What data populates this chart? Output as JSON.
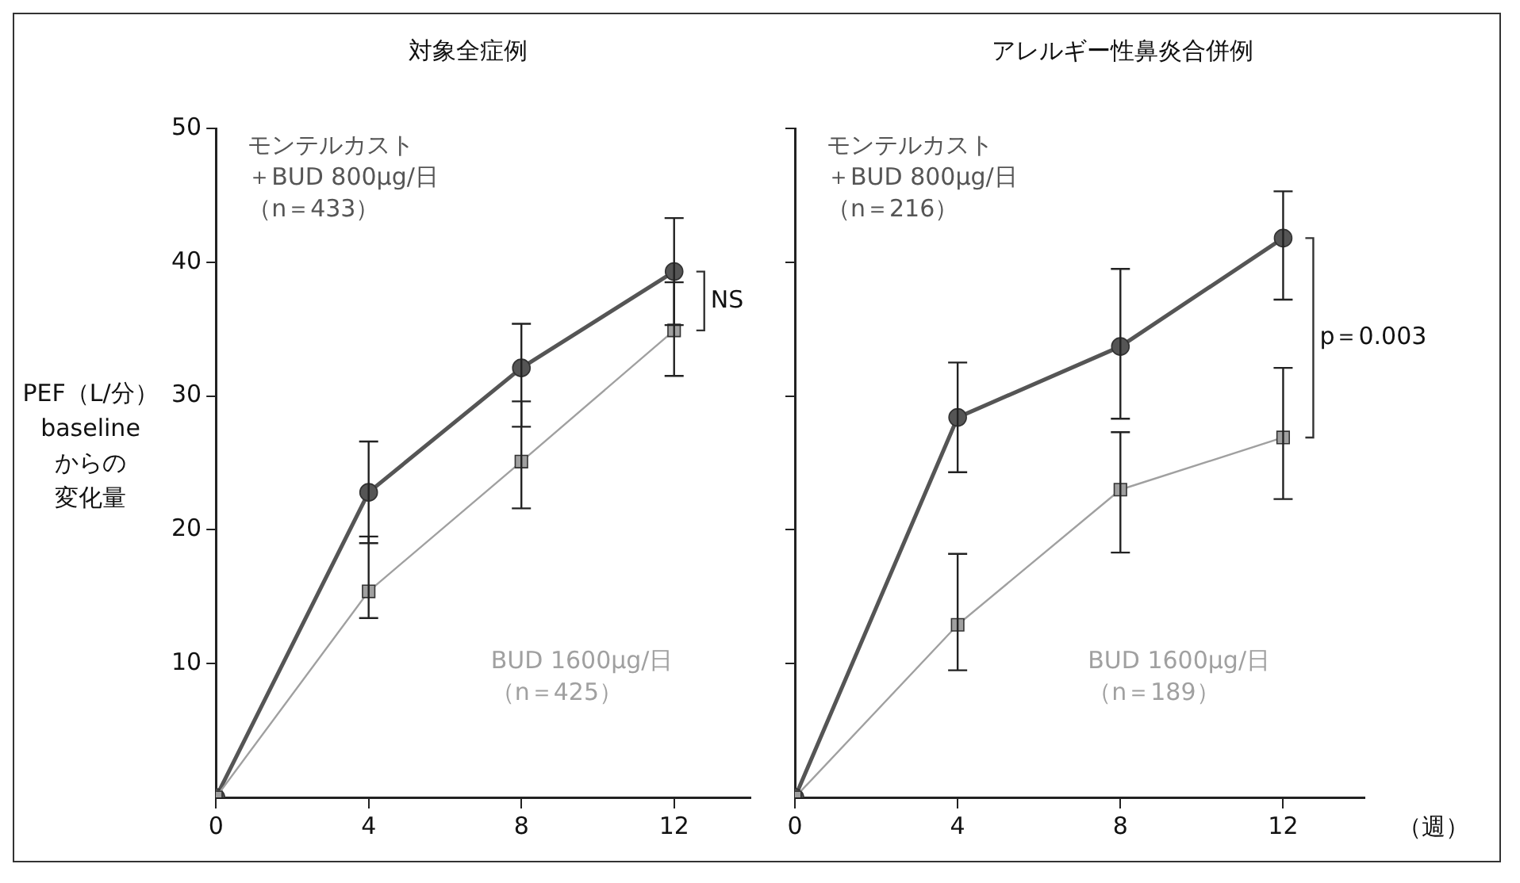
{
  "chart_data": [
    {
      "type": "line",
      "title": "対象全症例",
      "ylabel": "PEF（L/分）baselineからの変化量",
      "x": [
        0,
        4,
        8,
        12
      ],
      "xlim": [
        0,
        14
      ],
      "xticks": [
        0,
        4,
        8,
        12
      ],
      "ylim": [
        0,
        50
      ],
      "yticks": [
        10,
        20,
        30,
        40,
        50
      ],
      "grid": false,
      "legend": false,
      "annotations": [
        "NS"
      ],
      "series": [
        {
          "name": "モンテルカスト＋BUD 800μg/日（n＝433）",
          "color": "#555555",
          "marker": "circle",
          "values": [
            0,
            22.8,
            32.1,
            39.3
          ],
          "errors": [
            null,
            [
              19.0,
              26.6
            ],
            [
              27.7,
              35.4
            ],
            [
              35.3,
              43.3
            ]
          ]
        },
        {
          "name": "BUD 1600μg/日（n＝425）",
          "color": "#a0a0a0",
          "marker": "square",
          "values": [
            0,
            15.4,
            25.1,
            34.9
          ],
          "errors": [
            null,
            [
              13.4,
              19.5
            ],
            [
              21.6,
              29.6
            ],
            [
              31.5,
              38.5
            ]
          ]
        }
      ]
    },
    {
      "type": "line",
      "title": "アレルギー性鼻炎合併例",
      "xlabel": "（週）",
      "x": [
        0,
        4,
        8,
        12
      ],
      "xlim": [
        0,
        14
      ],
      "xticks": [
        0,
        4,
        8,
        12
      ],
      "ylim": [
        0,
        50
      ],
      "yticks": [
        {
          "value": 10,
          "label": null
        },
        {
          "value": 20,
          "label": null
        },
        {
          "value": 30,
          "label": null
        },
        {
          "value": 40,
          "label": null
        },
        {
          "value": 50,
          "label": null
        }
      ],
      "tick_labels": "x",
      "grid": false,
      "legend": false,
      "annotations": [
        "p＝0.003"
      ],
      "series": [
        {
          "name": "モンテルカスト＋BUD 800μg/日（n＝216）",
          "color": "#555555",
          "marker": "circle",
          "values": [
            0,
            28.4,
            33.7,
            41.8
          ],
          "errors": [
            null,
            [
              24.3,
              32.5
            ],
            [
              28.3,
              39.5
            ],
            [
              37.2,
              45.3
            ]
          ]
        },
        {
          "name": "BUD 1600μg/日（n＝189）",
          "color": "#a0a0a0",
          "marker": "square",
          "values": [
            0,
            12.9,
            23.0,
            26.9
          ],
          "errors": [
            null,
            [
              9.5,
              18.2
            ],
            [
              18.3,
              27.3
            ],
            [
              22.3,
              32.1
            ]
          ]
        }
      ]
    }
  ]
}
